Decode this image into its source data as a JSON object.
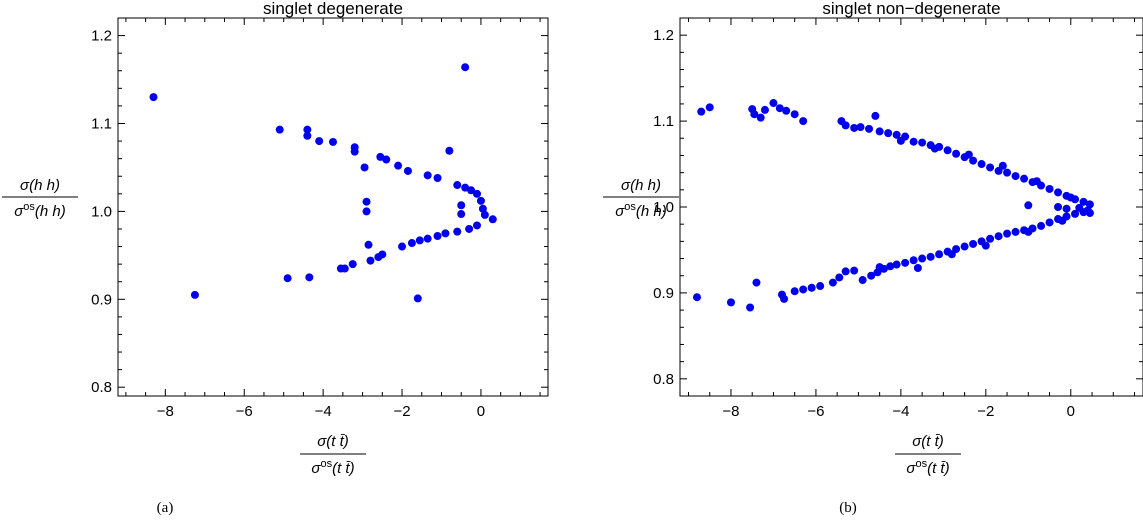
{
  "chart_data": [
    {
      "type": "scatter",
      "title": "singlet degenerate",
      "caption": "(a)",
      "ylabel_num": "σ(h h)",
      "ylabel_den": "σ",
      "ylabel_den_sup": "os",
      "ylabel_den_rest": "(h h)",
      "xlabel_num": "σ(t t̄)",
      "xlabel_den": "σ",
      "xlabel_den_sup": "os",
      "xlabel_den_rest": "(t t̄)",
      "xlim": [
        -9.2,
        1.7
      ],
      "ylim": [
        0.79,
        1.22
      ],
      "xticks": [
        -8,
        -6,
        -4,
        -2,
        0
      ],
      "xtick_labels": [
        "−8",
        "−6",
        "−4",
        "−2",
        "0"
      ],
      "yticks": [
        0.8,
        0.9,
        1.0,
        1.1,
        1.2
      ],
      "ytick_labels": [
        "0.8",
        "0.9",
        "1.0",
        "1.1",
        "1.2"
      ],
      "color": "#0000ee",
      "points": [
        [
          -8.3,
          1.13
        ],
        [
          -7.25,
          0.905
        ],
        [
          -5.1,
          1.093
        ],
        [
          -4.4,
          1.093
        ],
        [
          -4.4,
          1.086
        ],
        [
          -4.1,
          1.08
        ],
        [
          -3.75,
          1.079
        ],
        [
          -3.2,
          1.073
        ],
        [
          -3.2,
          1.068
        ],
        [
          -2.95,
          1.05
        ],
        [
          -2.55,
          1.062
        ],
        [
          -2.4,
          1.059
        ],
        [
          -2.1,
          1.052
        ],
        [
          -1.85,
          1.046
        ],
        [
          -1.35,
          1.041
        ],
        [
          -1.1,
          1.038
        ],
        [
          -0.8,
          1.069
        ],
        [
          -0.6,
          1.03
        ],
        [
          -0.4,
          1.027
        ],
        [
          -0.25,
          1.024
        ],
        [
          -0.1,
          1.02
        ],
        [
          0.0,
          1.012
        ],
        [
          0.05,
          1.003
        ],
        [
          0.1,
          0.996
        ],
        [
          0.3,
          0.991
        ],
        [
          -0.4,
          1.164
        ],
        [
          -2.9,
          1.011
        ],
        [
          -2.9,
          1.0
        ],
        [
          -0.5,
          1.007
        ],
        [
          -0.5,
          0.997
        ],
        [
          -0.1,
          0.984
        ],
        [
          -0.3,
          0.98
        ],
        [
          -0.6,
          0.977
        ],
        [
          -0.9,
          0.975
        ],
        [
          -1.1,
          0.972
        ],
        [
          -1.35,
          0.969
        ],
        [
          -1.55,
          0.967
        ],
        [
          -1.75,
          0.964
        ],
        [
          -2.0,
          0.96
        ],
        [
          -2.5,
          0.951
        ],
        [
          -2.6,
          0.948
        ],
        [
          -2.85,
          0.962
        ],
        [
          -2.8,
          0.944
        ],
        [
          -3.25,
          0.94
        ],
        [
          -3.45,
          0.935
        ],
        [
          -3.55,
          0.935
        ],
        [
          -4.35,
          0.925
        ],
        [
          -4.9,
          0.924
        ],
        [
          -1.6,
          0.901
        ]
      ]
    },
    {
      "type": "scatter",
      "title": "singlet non−degenerate",
      "caption": "(b)",
      "ylabel_num": "σ(h h)",
      "ylabel_den": "σ",
      "ylabel_den_sup": "os",
      "ylabel_den_rest": "(h h)",
      "xlabel_num": "σ(t t̄)",
      "xlabel_den": "σ",
      "xlabel_den_sup": "os",
      "xlabel_den_rest": "(t t̄)",
      "xlim": [
        -9.2,
        1.7
      ],
      "ylim": [
        0.78,
        1.22
      ],
      "xticks": [
        -8,
        -6,
        -4,
        -2,
        0
      ],
      "xtick_labels": [
        "−8",
        "−6",
        "−4",
        "−2",
        "0"
      ],
      "yticks": [
        0.8,
        0.9,
        1.0,
        1.1,
        1.2
      ],
      "ytick_labels": [
        "0.8",
        "0.9",
        "1.0",
        "1.1",
        "1.2"
      ],
      "color": "#0000ee",
      "points": [
        [
          -8.8,
          0.895
        ],
        [
          -8.0,
          0.889
        ],
        [
          -7.55,
          0.883
        ],
        [
          -7.4,
          0.912
        ],
        [
          -6.8,
          0.898
        ],
        [
          -6.75,
          0.893
        ],
        [
          -6.5,
          0.902
        ],
        [
          -6.3,
          0.904
        ],
        [
          -6.1,
          0.906
        ],
        [
          -5.9,
          0.908
        ],
        [
          -5.6,
          0.912
        ],
        [
          -5.45,
          0.918
        ],
        [
          -5.3,
          0.925
        ],
        [
          -5.1,
          0.926
        ],
        [
          -4.9,
          0.915
        ],
        [
          -4.7,
          0.92
        ],
        [
          -4.55,
          0.924
        ],
        [
          -4.4,
          0.928
        ],
        [
          -4.25,
          0.931
        ],
        [
          -4.1,
          0.933
        ],
        [
          -3.9,
          0.935
        ],
        [
          -3.7,
          0.938
        ],
        [
          -3.5,
          0.94
        ],
        [
          -3.3,
          0.942
        ],
        [
          -3.1,
          0.945
        ],
        [
          -2.9,
          0.948
        ],
        [
          -2.7,
          0.951
        ],
        [
          -2.5,
          0.954
        ],
        [
          -2.3,
          0.957
        ],
        [
          -2.1,
          0.96
        ],
        [
          -1.9,
          0.963
        ],
        [
          -1.7,
          0.966
        ],
        [
          -1.5,
          0.969
        ],
        [
          -1.3,
          0.971
        ],
        [
          -1.1,
          0.973
        ],
        [
          -0.9,
          0.975
        ],
        [
          -0.7,
          0.978
        ],
        [
          -0.5,
          0.982
        ],
        [
          -0.3,
          0.986
        ],
        [
          -0.1,
          0.989
        ],
        [
          0.1,
          0.992
        ],
        [
          0.3,
          0.994
        ],
        [
          0.45,
          0.993
        ],
        [
          -4.5,
          0.93
        ],
        [
          -3.6,
          0.929
        ],
        [
          -2.8,
          0.945
        ],
        [
          -2.0,
          0.955
        ],
        [
          -1.0,
          0.971
        ],
        [
          -0.2,
          0.984
        ],
        [
          -8.7,
          1.111
        ],
        [
          -8.5,
          1.116
        ],
        [
          -7.5,
          1.114
        ],
        [
          -7.45,
          1.108
        ],
        [
          -7.3,
          1.104
        ],
        [
          -7.2,
          1.113
        ],
        [
          -7.0,
          1.121
        ],
        [
          -6.85,
          1.115
        ],
        [
          -6.7,
          1.112
        ],
        [
          -6.5,
          1.108
        ],
        [
          -6.3,
          1.1
        ],
        [
          -5.4,
          1.1
        ],
        [
          -5.3,
          1.095
        ],
        [
          -5.1,
          1.092
        ],
        [
          -4.95,
          1.093
        ],
        [
          -4.75,
          1.091
        ],
        [
          -4.6,
          1.106
        ],
        [
          -4.5,
          1.088
        ],
        [
          -4.3,
          1.086
        ],
        [
          -4.1,
          1.084
        ],
        [
          -3.9,
          1.082
        ],
        [
          -3.7,
          1.076
        ],
        [
          -3.5,
          1.075
        ],
        [
          -3.3,
          1.072
        ],
        [
          -3.1,
          1.07
        ],
        [
          -2.9,
          1.066
        ],
        [
          -2.7,
          1.062
        ],
        [
          -2.5,
          1.058
        ],
        [
          -2.3,
          1.054
        ],
        [
          -2.1,
          1.05
        ],
        [
          -1.9,
          1.046
        ],
        [
          -1.7,
          1.042
        ],
        [
          -1.5,
          1.04
        ],
        [
          -1.3,
          1.036
        ],
        [
          -1.1,
          1.033
        ],
        [
          -0.9,
          1.029
        ],
        [
          -0.7,
          1.025
        ],
        [
          -0.5,
          1.021
        ],
        [
          -0.3,
          1.017
        ],
        [
          -0.1,
          1.013
        ],
        [
          0.1,
          1.009
        ],
        [
          0.3,
          1.006
        ],
        [
          0.45,
          1.003
        ],
        [
          -4.0,
          1.077
        ],
        [
          -3.2,
          1.068
        ],
        [
          -2.4,
          1.061
        ],
        [
          -1.6,
          1.048
        ],
        [
          -0.8,
          1.03
        ],
        [
          0.0,
          1.011
        ],
        [
          -1.0,
          1.002
        ],
        [
          -0.3,
          1.0
        ],
        [
          -0.1,
          0.998
        ],
        [
          0.2,
          0.999
        ],
        [
          0.4,
          0.996
        ]
      ]
    }
  ]
}
